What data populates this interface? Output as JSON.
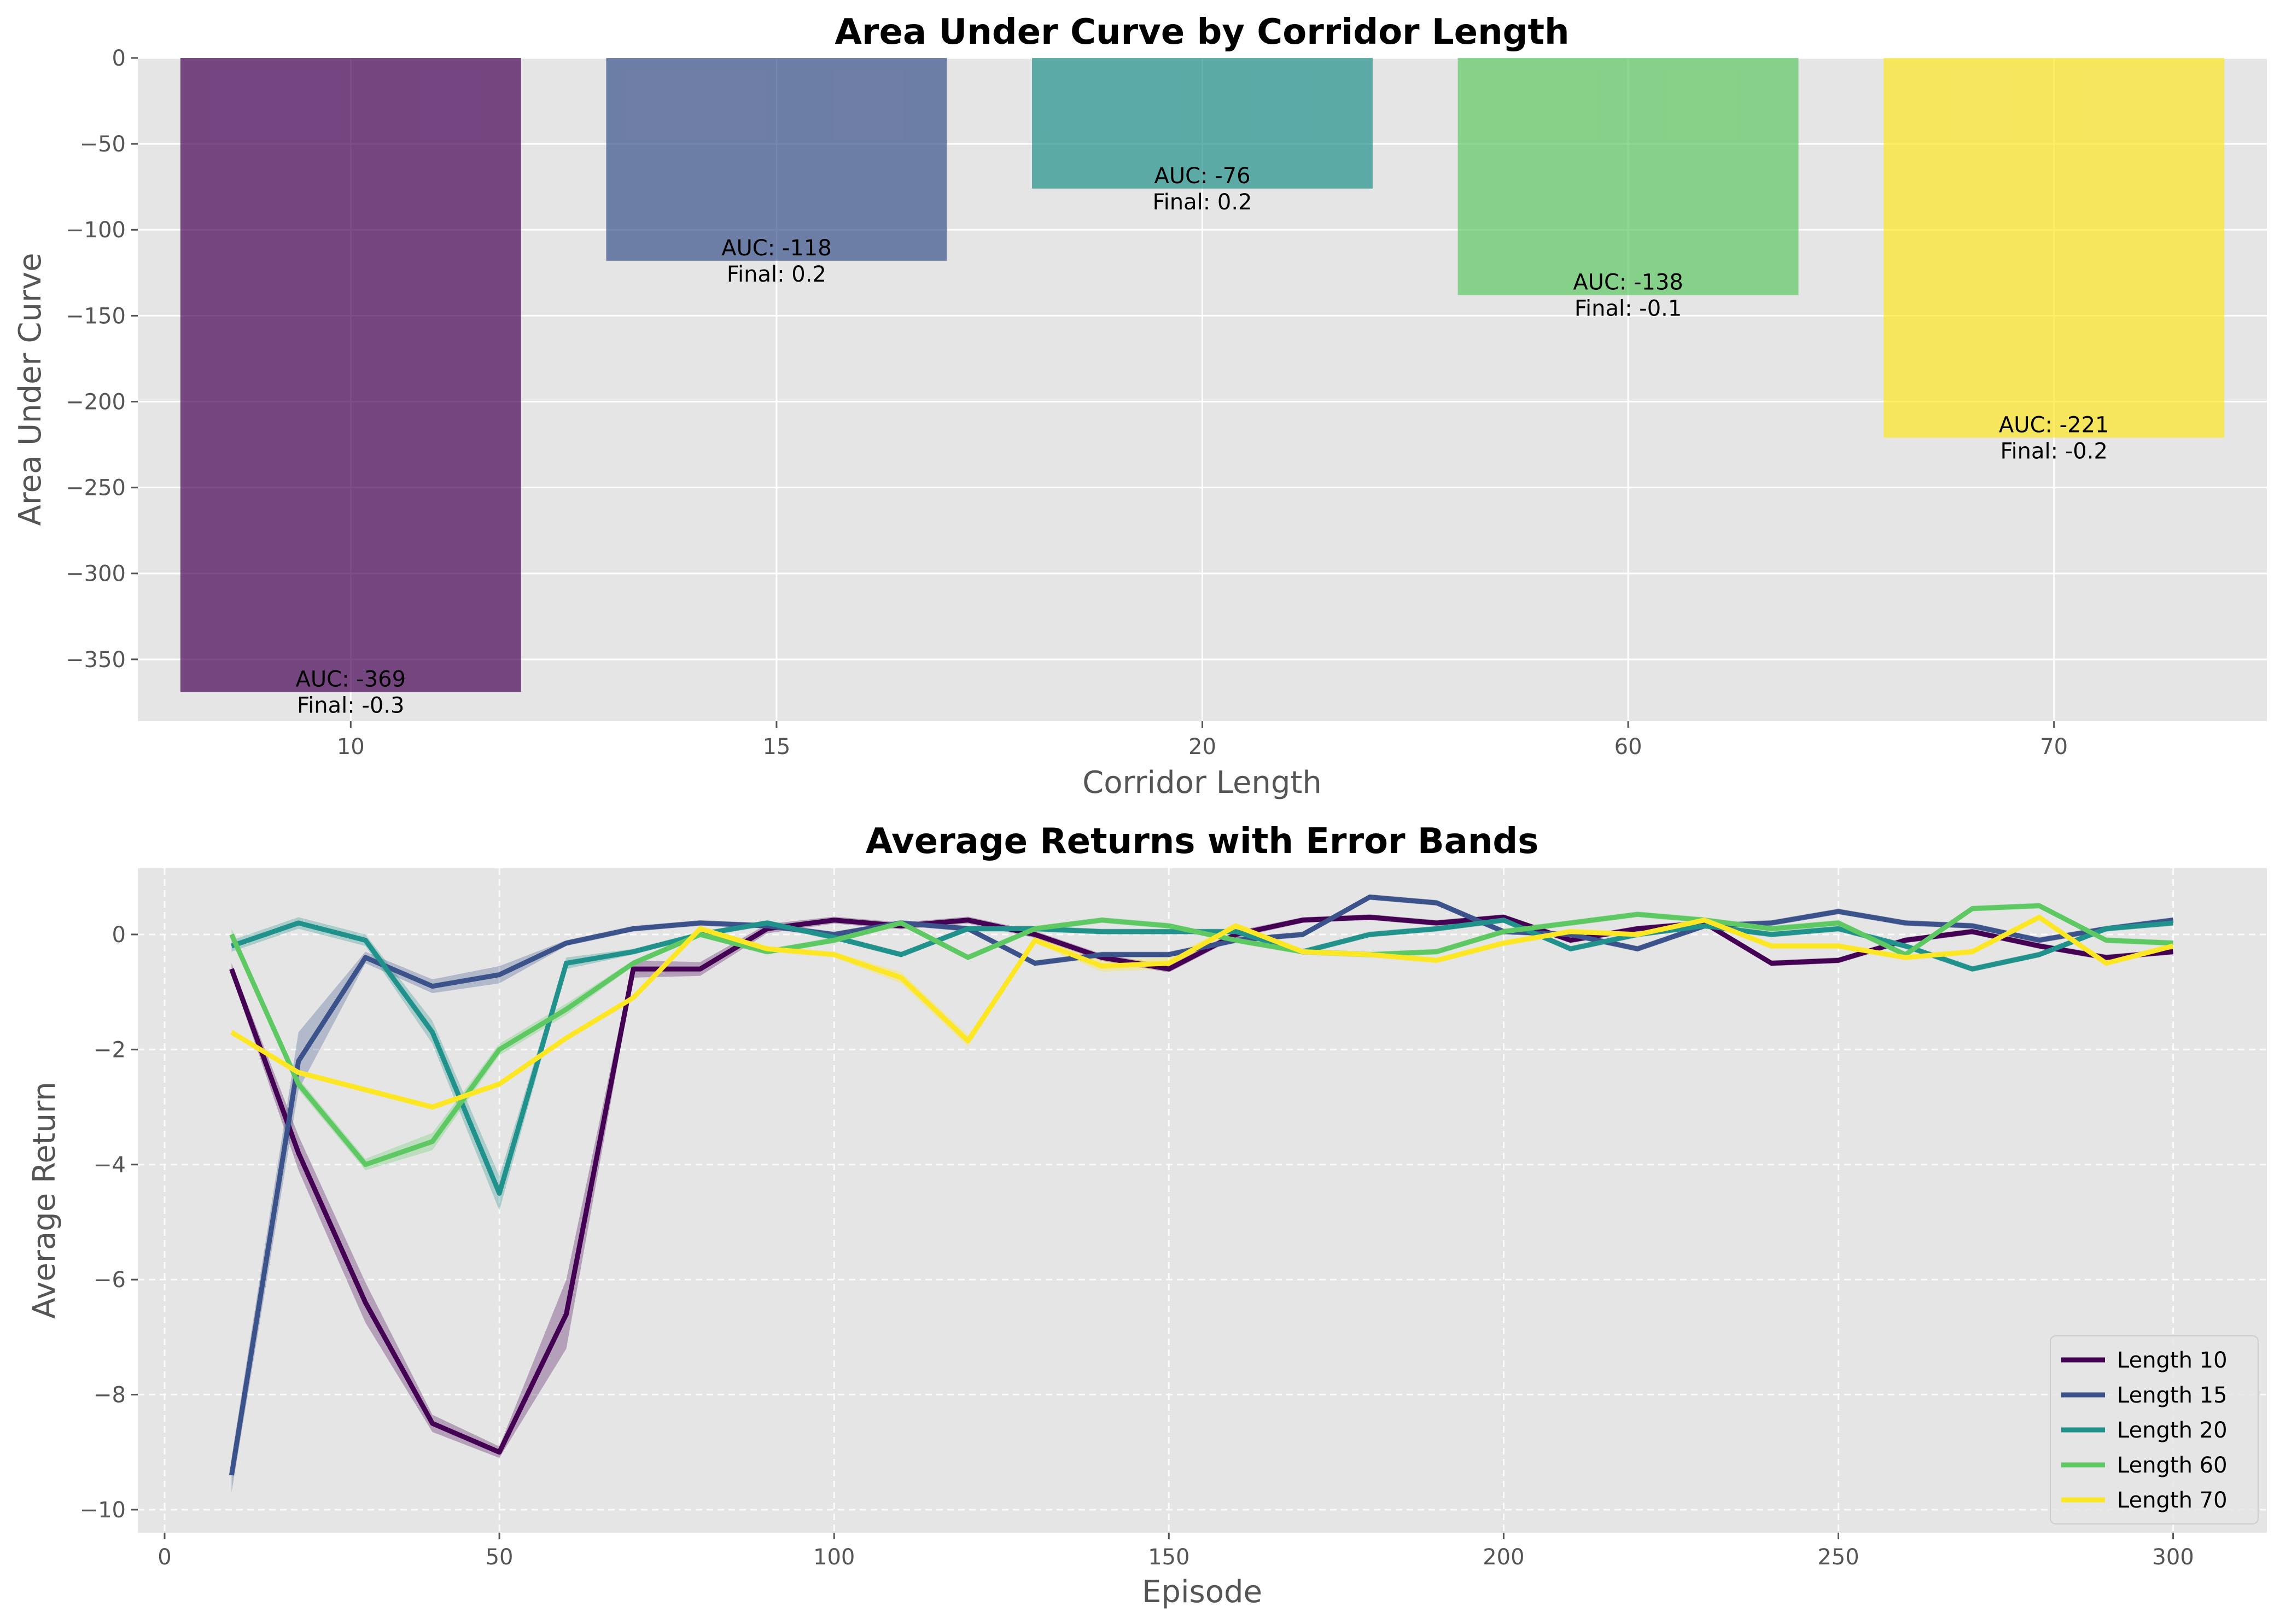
{
  "colors": {
    "axes_bg": "#e5e5e5",
    "grid": "#ffffff",
    "tick": "#555555"
  },
  "chart_data": [
    {
      "type": "bar",
      "title": "Area Under Curve by Corridor Length",
      "xlabel": "Corridor Length",
      "ylabel": "Area Under Curve",
      "categories": [
        "10",
        "15",
        "20",
        "60",
        "70"
      ],
      "values": [
        -369,
        -118,
        -76,
        -138,
        -221
      ],
      "annotations": [
        {
          "auc": "AUC: -369",
          "final": "Final: -0.3"
        },
        {
          "auc": "AUC: -118",
          "final": "Final: 0.2"
        },
        {
          "auc": "AUC: -76",
          "final": "Final: 0.2"
        },
        {
          "auc": "AUC: -138",
          "final": "Final: -0.1"
        },
        {
          "auc": "AUC: -221",
          "final": "Final: -0.2"
        }
      ],
      "colors": [
        "#440154",
        "#3b528b",
        "#21918c",
        "#5ec962",
        "#fde725"
      ],
      "ylim": [
        -386,
        0
      ],
      "yticks": [
        0,
        -50,
        -100,
        -150,
        -200,
        -250,
        -300,
        -350
      ],
      "ytick_labels": [
        "0",
        "−50",
        "−100",
        "−150",
        "−200",
        "−250",
        "−300",
        "−350"
      ],
      "grid": true
    },
    {
      "type": "line",
      "title": "Average Returns with Error Bands",
      "xlabel": "Episode",
      "ylabel": "Average Return",
      "xlim": [
        -4,
        314
      ],
      "ylim": [
        -10.4,
        1.15
      ],
      "xticks": [
        0,
        50,
        100,
        150,
        200,
        250,
        300
      ],
      "xtick_labels": [
        "0",
        "50",
        "100",
        "150",
        "200",
        "250",
        "300"
      ],
      "yticks": [
        0,
        -2,
        -4,
        -6,
        -8,
        -10
      ],
      "ytick_labels": [
        "0",
        "−2",
        "−4",
        "−6",
        "−8",
        "−10"
      ],
      "grid": true,
      "legend_position": "lower-right",
      "x": [
        10,
        20,
        30,
        40,
        50,
        60,
        70,
        80,
        90,
        100,
        110,
        120,
        130,
        140,
        150,
        160,
        170,
        180,
        190,
        200,
        210,
        220,
        230,
        240,
        250,
        260,
        270,
        280,
        290,
        300
      ],
      "series": [
        {
          "name": "Length 10",
          "color": "#440154",
          "band": [
            0.1,
            0.3,
            0.35,
            0.15,
            0.1,
            0.6,
            0.15,
            0.12,
            0.08,
            0.06,
            0.06,
            0.06,
            0.06,
            0.06,
            0.06,
            0.06,
            0.05,
            0.05,
            0.05,
            0.05,
            0.05,
            0.05,
            0.05,
            0.05,
            0.05,
            0.05,
            0.05,
            0.05,
            0.05,
            0.05
          ],
          "values": [
            -0.6,
            -3.8,
            -6.4,
            -8.5,
            -9.0,
            -6.6,
            -0.6,
            -0.6,
            0.1,
            0.25,
            0.15,
            0.25,
            0.0,
            -0.4,
            -0.6,
            0.0,
            0.25,
            0.3,
            0.2,
            0.3,
            -0.1,
            0.1,
            0.2,
            -0.5,
            -0.45,
            -0.1,
            0.05,
            -0.2,
            -0.4,
            -0.3
          ]
        },
        {
          "name": "Length 15",
          "color": "#3b528b",
          "band": [
            0.3,
            0.5,
            0.1,
            0.12,
            0.15,
            0.05,
            0.05,
            0.05,
            0.05,
            0.05,
            0.05,
            0.05,
            0.05,
            0.05,
            0.05,
            0.05,
            0.05,
            0.05,
            0.05,
            0.05,
            0.05,
            0.05,
            0.05,
            0.05,
            0.05,
            0.05,
            0.05,
            0.05,
            0.05,
            0.05
          ],
          "values": [
            -9.4,
            -2.2,
            -0.4,
            -0.9,
            -0.7,
            -0.15,
            0.1,
            0.2,
            0.15,
            0.0,
            0.2,
            0.1,
            -0.5,
            -0.35,
            -0.35,
            -0.1,
            0.0,
            0.65,
            0.55,
            0.05,
            0.0,
            -0.25,
            0.15,
            0.2,
            0.4,
            0.2,
            0.15,
            -0.1,
            0.1,
            0.25
          ]
        },
        {
          "name": "Length 20",
          "color": "#21918c",
          "band": [
            0.1,
            0.1,
            0.1,
            0.2,
            0.3,
            0.1,
            0.05,
            0.05,
            0.05,
            0.05,
            0.05,
            0.05,
            0.05,
            0.05,
            0.05,
            0.05,
            0.05,
            0.05,
            0.05,
            0.05,
            0.05,
            0.05,
            0.05,
            0.05,
            0.05,
            0.05,
            0.05,
            0.05,
            0.05,
            0.05
          ],
          "values": [
            -0.2,
            0.2,
            -0.1,
            -1.7,
            -4.5,
            -0.5,
            -0.3,
            0.0,
            0.2,
            -0.05,
            -0.35,
            0.1,
            0.1,
            0.05,
            0.05,
            0.05,
            -0.3,
            0.0,
            0.1,
            0.25,
            -0.25,
            0.0,
            0.15,
            0.0,
            0.1,
            -0.2,
            -0.6,
            -0.35,
            0.1,
            0.2
          ]
        },
        {
          "name": "Length 60",
          "color": "#5ec962",
          "band": [
            0.1,
            0.1,
            0.1,
            0.15,
            0.1,
            0.1,
            0.05,
            0.05,
            0.05,
            0.05,
            0.05,
            0.05,
            0.05,
            0.05,
            0.05,
            0.05,
            0.05,
            0.05,
            0.05,
            0.05,
            0.05,
            0.05,
            0.05,
            0.05,
            0.05,
            0.05,
            0.05,
            0.05,
            0.05,
            0.05
          ],
          "values": [
            0.0,
            -2.6,
            -4.0,
            -3.6,
            -2.0,
            -1.3,
            -0.5,
            0.0,
            -0.3,
            -0.1,
            0.2,
            -0.4,
            0.1,
            0.25,
            0.15,
            -0.1,
            -0.3,
            -0.35,
            -0.3,
            0.05,
            0.2,
            0.35,
            0.25,
            0.1,
            0.2,
            -0.35,
            0.45,
            0.5,
            -0.1,
            -0.15
          ]
        },
        {
          "name": "Length 70",
          "color": "#fde725",
          "band": [
            0.05,
            0.05,
            0.05,
            0.05,
            0.05,
            0.05,
            0.05,
            0.05,
            0.05,
            0.05,
            0.1,
            0.1,
            0.05,
            0.1,
            0.1,
            0.05,
            0.05,
            0.05,
            0.05,
            0.05,
            0.05,
            0.05,
            0.05,
            0.05,
            0.05,
            0.05,
            0.05,
            0.05,
            0.05,
            0.05
          ],
          "values": [
            -1.7,
            -2.4,
            -2.7,
            -3.0,
            -2.6,
            -1.8,
            -1.1,
            0.1,
            -0.25,
            -0.35,
            -0.75,
            -1.85,
            -0.1,
            -0.55,
            -0.5,
            0.15,
            -0.3,
            -0.35,
            -0.45,
            -0.15,
            0.05,
            0.0,
            0.25,
            -0.2,
            -0.2,
            -0.4,
            -0.3,
            0.3,
            -0.5,
            -0.2
          ]
        }
      ]
    }
  ]
}
